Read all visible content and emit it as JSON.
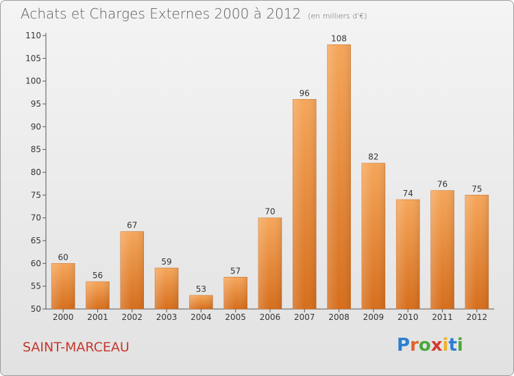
{
  "header": {
    "title": "Achats et Charges Externes 2000 à 2012",
    "subtitle": "(en milliers d'€)"
  },
  "footer": {
    "city": "SAINT-MARCEAU",
    "logo_letters": [
      "P",
      "r",
      "o",
      "x",
      "i",
      "t",
      "i"
    ],
    "logo_colors": [
      "#2a7fd0",
      "#e0632a",
      "#49a83b",
      "#d63a2d",
      "#f0b12a",
      "#2a7fd0",
      "#49a83b"
    ]
  },
  "chart_data": {
    "type": "bar",
    "title": "Achats et Charges Externes 2000 à 2012",
    "subtitle": "(en milliers d'€)",
    "categories": [
      "2000",
      "2001",
      "2002",
      "2003",
      "2004",
      "2005",
      "2006",
      "2007",
      "2008",
      "2009",
      "2010",
      "2011",
      "2012"
    ],
    "values": [
      60,
      56,
      67,
      59,
      53,
      57,
      70,
      96,
      108,
      82,
      74,
      76,
      75
    ],
    "ylim": [
      50,
      110
    ],
    "yticks": [
      50,
      55,
      60,
      65,
      70,
      75,
      80,
      85,
      90,
      95,
      100,
      105,
      110
    ],
    "grid": false,
    "bar_color_top": "#f5a65a",
    "bar_color_bottom": "#d66e1c"
  }
}
